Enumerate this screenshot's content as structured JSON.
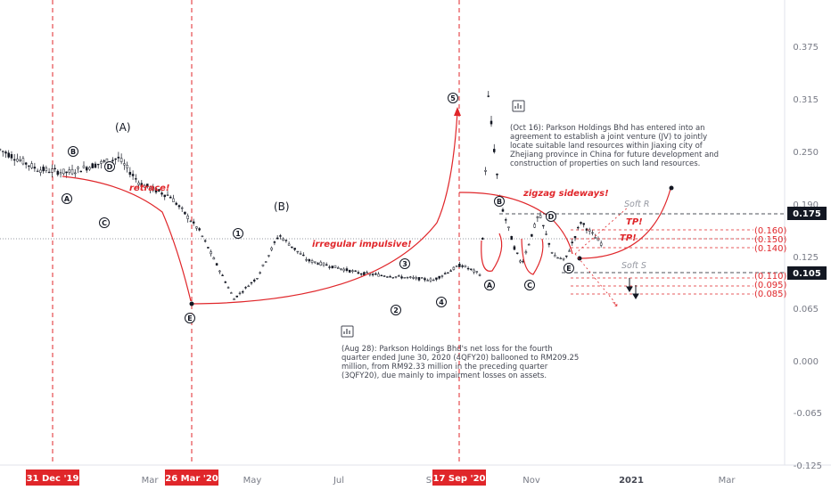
{
  "chart_data": {
    "type": "candlestick",
    "y_axis": {
      "ticks": [
        "0.375",
        "0.315",
        "0.250",
        "0.190",
        "0.125",
        "0.065",
        "0.000",
        "-0.065",
        "-0.125"
      ],
      "range": [
        -0.125,
        0.41
      ]
    },
    "x_axis": {
      "ticks": [
        "Mar",
        "May",
        "Jul",
        "Se",
        "Nov",
        "2021",
        "Mar"
      ],
      "highlighted_dates": [
        "31 Dec '19",
        "26 Mar '20",
        "17 Sep '20"
      ],
      "range": [
        "2019-10-15",
        "2021-04-10"
      ]
    },
    "price_tags": [
      {
        "label": "0.175",
        "value": 0.175
      },
      {
        "label": "0.105",
        "value": 0.105
      }
    ],
    "levels": [
      {
        "label": "(0.160)",
        "value": 0.16
      },
      {
        "label": "(0.150)",
        "value": 0.15
      },
      {
        "label": "(0.140)",
        "value": 0.14
      },
      {
        "label": "(0.110)",
        "value": 0.11
      },
      {
        "label": "(0.095)",
        "value": 0.095
      },
      {
        "label": "(0.085)",
        "value": 0.085
      }
    ],
    "waves": [
      {
        "label": "(A)",
        "date": "2020-01-25",
        "value": 0.28
      },
      {
        "label": "(B)",
        "date": "2020-05-25",
        "value": 0.183
      }
    ],
    "wave_circles": [
      {
        "label": "B",
        "date": "2020-01-05",
        "value": 0.247
      },
      {
        "label": "D",
        "date": "2020-01-30",
        "value": 0.235
      },
      {
        "label": "A",
        "date": "2019-12-29",
        "value": 0.201
      },
      {
        "label": "C",
        "date": "2020-01-25",
        "value": 0.163
      },
      {
        "label": "E",
        "date": "2020-03-25",
        "value": 0.053
      },
      {
        "label": "1",
        "date": "2020-04-25",
        "value": 0.157
      },
      {
        "label": "2",
        "date": "2020-08-25",
        "value": 0.06
      },
      {
        "label": "3",
        "date": "2020-08-29",
        "value": 0.122
      },
      {
        "label": "4",
        "date": "2020-09-15",
        "value": 0.07
      },
      {
        "label": "5",
        "date": "2020-09-13",
        "value": 0.331
      },
      {
        "label": "B",
        "date": "2020-10-22",
        "value": 0.196
      },
      {
        "label": "D",
        "date": "2020-11-25",
        "value": 0.166
      },
      {
        "label": "A",
        "date": "2020-10-10",
        "value": 0.092
      },
      {
        "label": "C",
        "date": "2020-11-09",
        "value": 0.093
      },
      {
        "label": "E",
        "date": "2020-12-04",
        "value": 0.109
      }
    ],
    "labels": {
      "retrace": "retrace!",
      "irregular": "irregular impulsive!",
      "zigzag": "zigzag sideways!",
      "tp1": "TP!",
      "tp2": "TP!",
      "soft_r": "Soft R",
      "soft_s": "Soft S"
    },
    "notes": {
      "oct16": "(Oct 16): Parkson Holdings Bhd has entered into an agreement to establish a joint venture (JV) to jointly locate suitable land resources within Jiaxing city of Zhejiang province in China for future development and construction of properties on such land resources.",
      "aug28": "(Aug 28): Parkson Holdings Bhd's net loss for the fourth quarter ended June 30, 2020 (4QFY20) ballooned to RM209.25 million, from RM92.33 million in the preceding quarter (3QFY20), due mainly to impairment losses on assets."
    },
    "colors": {
      "candle": "#131722",
      "accent": "#e0262a",
      "highlight_tag": "#e0262a",
      "price_tag": "#131722"
    }
  }
}
